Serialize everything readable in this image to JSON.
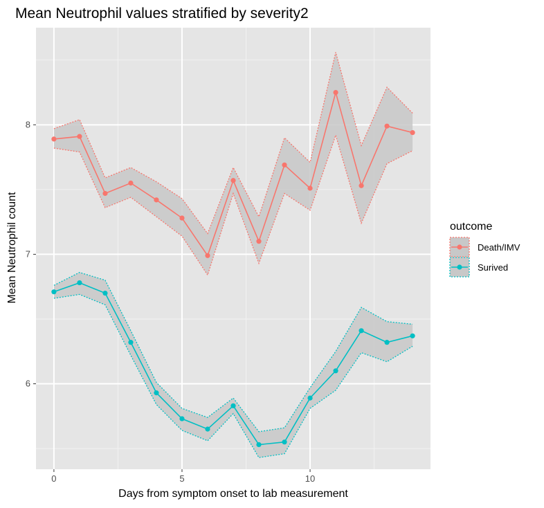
{
  "chart_data": {
    "type": "line",
    "title": "Mean Neutrophil values stratified by severity2",
    "xlabel": "Days from symptom onset to lab measurement",
    "ylabel": "Mean Neutrophil count",
    "x": [
      0,
      1,
      2,
      3,
      4,
      5,
      6,
      7,
      8,
      9,
      10,
      11,
      12,
      13,
      14
    ],
    "xlim": [
      -0.7,
      14.7
    ],
    "ylim": [
      5.34,
      8.75
    ],
    "xticks": [
      0,
      5,
      10
    ],
    "yticks": [
      6,
      7,
      8
    ],
    "xtick_labels": [
      "0",
      "5",
      "10"
    ],
    "ytick_labels": [
      "6",
      "7",
      "8"
    ],
    "grid": true,
    "legend": {
      "title": "outcome",
      "position": "right"
    },
    "background_color": "#e5e5e5",
    "ribbon_color": "#c8c8c8",
    "series": [
      {
        "name": "Death/IMV",
        "color": "#f8766d",
        "values": [
          7.89,
          7.91,
          7.47,
          7.55,
          7.42,
          7.28,
          6.99,
          7.57,
          7.1,
          7.69,
          7.51,
          8.25,
          7.53,
          7.99,
          7.94
        ],
        "upper": [
          7.97,
          8.04,
          7.59,
          7.67,
          7.56,
          7.43,
          7.16,
          7.67,
          7.29,
          7.9,
          7.71,
          8.56,
          7.84,
          8.29,
          8.09
        ],
        "lower": [
          7.82,
          7.79,
          7.36,
          7.44,
          7.29,
          7.14,
          6.84,
          7.47,
          6.93,
          7.47,
          7.34,
          7.92,
          7.24,
          7.7,
          7.8
        ]
      },
      {
        "name": "Surived",
        "color": "#00bfc4",
        "values": [
          6.71,
          6.78,
          6.7,
          6.32,
          5.93,
          5.73,
          5.65,
          5.83,
          5.53,
          5.55,
          5.89,
          6.1,
          6.41,
          6.32,
          6.37
        ],
        "upper": [
          6.76,
          6.86,
          6.8,
          6.41,
          6.01,
          5.81,
          5.74,
          5.89,
          5.63,
          5.66,
          5.97,
          6.25,
          6.59,
          6.48,
          6.46
        ],
        "lower": [
          6.66,
          6.69,
          6.61,
          6.22,
          5.84,
          5.64,
          5.56,
          5.77,
          5.43,
          5.46,
          5.81,
          5.95,
          6.24,
          6.17,
          6.29
        ]
      }
    ]
  }
}
